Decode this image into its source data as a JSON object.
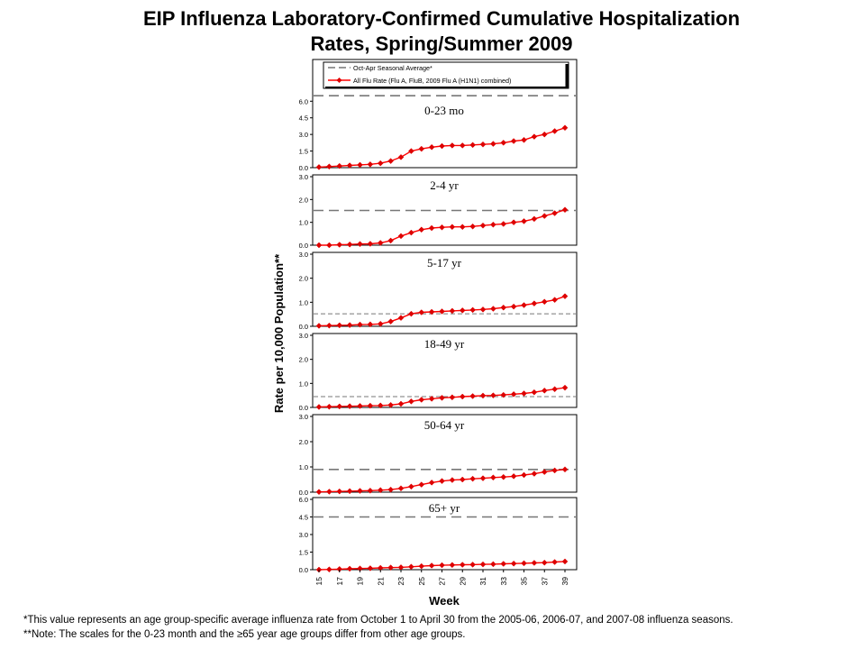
{
  "title_line1": "EIP Influenza Laboratory-Confirmed Cumulative Hospitalization",
  "title_line2": "Rates, Spring/Summer 2009",
  "footnote1": "*This value represents an age group-specific average influenza rate from October 1 to April 30 from the 2005-06, 2006-07, and 2007-08 influenza seasons.",
  "footnote2": "**Note: The scales for the 0-23 month and the ≥65 year age groups differ from other age groups.",
  "colors": {
    "series": "#ff0000",
    "marker": "#dd0000",
    "average_line": "#777777",
    "frame": "#000000"
  },
  "chart_data": {
    "type": "line",
    "ylabel": "Rate per 10,000 Population**",
    "xlabel": "Week",
    "x_tick_labels": [
      "15",
      "17",
      "19",
      "21",
      "23",
      "25",
      "27",
      "29",
      "31",
      "33",
      "35",
      "37",
      "39"
    ],
    "weeks": [
      15,
      16,
      17,
      18,
      19,
      20,
      21,
      22,
      23,
      24,
      25,
      26,
      27,
      28,
      29,
      30,
      31,
      32,
      33,
      34,
      35,
      36,
      37,
      38,
      39
    ],
    "legend": [
      {
        "label": "Oct-Apr Seasonal Average*",
        "style": "dashed-gray"
      },
      {
        "label": "All Flu Rate (Flu A, FluB, 2009 Flu A (H1N1) combined)",
        "style": "red-line-diamond"
      }
    ],
    "panels": [
      {
        "label": "0-23 mo",
        "ylim": [
          0,
          7.0
        ],
        "yticks": [
          "0.0",
          "1.5",
          "3.0",
          "4.5",
          "6.0"
        ],
        "ytick_values": [
          0,
          1.5,
          3.0,
          4.5,
          6.0
        ],
        "seasonal_average": 6.5,
        "values": [
          0.05,
          0.1,
          0.15,
          0.2,
          0.25,
          0.3,
          0.4,
          0.6,
          0.95,
          1.5,
          1.7,
          1.85,
          1.95,
          2.0,
          2.0,
          2.05,
          2.1,
          2.15,
          2.25,
          2.4,
          2.5,
          2.8,
          3.0,
          3.3,
          3.6
        ]
      },
      {
        "label": "2-4 yr",
        "ylim": [
          0,
          3.0
        ],
        "yticks": [
          "0.0",
          "1.0",
          "2.0",
          "3.0"
        ],
        "ytick_values": [
          0,
          1.0,
          2.0,
          3.0
        ],
        "seasonal_average": 1.52,
        "values": [
          0.0,
          0.0,
          0.02,
          0.03,
          0.05,
          0.06,
          0.1,
          0.2,
          0.4,
          0.55,
          0.68,
          0.75,
          0.78,
          0.8,
          0.8,
          0.82,
          0.86,
          0.9,
          0.93,
          1.0,
          1.05,
          1.15,
          1.28,
          1.4,
          1.55
        ]
      },
      {
        "label": "5-17 yr",
        "ylim": [
          0,
          3.0
        ],
        "yticks": [
          "0.0",
          "1.0",
          "2.0",
          "3.0"
        ],
        "ytick_values": [
          0,
          1.0,
          2.0,
          3.0
        ],
        "seasonal_average": 0.52,
        "values": [
          0.02,
          0.03,
          0.04,
          0.05,
          0.07,
          0.08,
          0.1,
          0.2,
          0.35,
          0.52,
          0.58,
          0.6,
          0.62,
          0.64,
          0.66,
          0.68,
          0.7,
          0.73,
          0.78,
          0.82,
          0.88,
          0.95,
          1.02,
          1.1,
          1.25
        ]
      },
      {
        "label": "18-49 yr",
        "ylim": [
          0,
          3.0
        ],
        "yticks": [
          "0.0",
          "1.0",
          "2.0",
          "3.0"
        ],
        "ytick_values": [
          0,
          1.0,
          2.0,
          3.0
        ],
        "seasonal_average": 0.45,
        "values": [
          0.02,
          0.03,
          0.04,
          0.05,
          0.06,
          0.07,
          0.08,
          0.1,
          0.15,
          0.25,
          0.32,
          0.36,
          0.4,
          0.42,
          0.45,
          0.47,
          0.49,
          0.5,
          0.52,
          0.55,
          0.58,
          0.63,
          0.7,
          0.76,
          0.82
        ]
      },
      {
        "label": "50-64 yr",
        "ylim": [
          0,
          3.0
        ],
        "yticks": [
          "0.0",
          "1.0",
          "2.0",
          "3.0"
        ],
        "ytick_values": [
          0,
          1.0,
          2.0,
          3.0
        ],
        "seasonal_average": 0.9,
        "values": [
          0.01,
          0.02,
          0.03,
          0.04,
          0.05,
          0.06,
          0.08,
          0.1,
          0.15,
          0.22,
          0.3,
          0.38,
          0.44,
          0.48,
          0.5,
          0.53,
          0.55,
          0.58,
          0.6,
          0.63,
          0.68,
          0.73,
          0.8,
          0.86,
          0.9
        ]
      },
      {
        "label": "65+ yr",
        "ylim": [
          0,
          6.0
        ],
        "yticks": [
          "0.0",
          "1.5",
          "3.0",
          "4.5",
          "6.0"
        ],
        "ytick_values": [
          0,
          1.5,
          3.0,
          4.5,
          6.0
        ],
        "seasonal_average": 4.5,
        "values": [
          0.0,
          0.02,
          0.05,
          0.08,
          0.1,
          0.12,
          0.15,
          0.18,
          0.2,
          0.25,
          0.3,
          0.35,
          0.38,
          0.4,
          0.42,
          0.43,
          0.45,
          0.47,
          0.5,
          0.52,
          0.55,
          0.58,
          0.6,
          0.65,
          0.7
        ]
      }
    ]
  }
}
